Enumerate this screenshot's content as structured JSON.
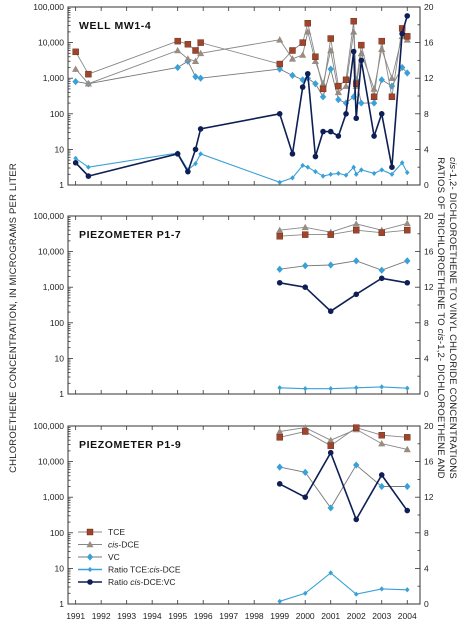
{
  "chart_data": {
    "type": "line",
    "ylabel_left": "CHLOROETHENE CONCENTRATION, IN MICROGRAMS PER LITER",
    "ylabel_right_line1": "RATIOS OF TRICHLOROETHENE TO cis-1,2- DICHLOROETHENE AND",
    "ylabel_right_line2": "cis-1,2- DICHLOROETHENE TO VINYL CHLORIDE CONCENTRATIONS",
    "left_axis": {
      "scale": "log",
      "ylim": [
        1,
        100000
      ],
      "tick_labels": [
        "1",
        "10",
        "100",
        "1,000",
        "10,000",
        "100,000"
      ]
    },
    "right_axis": {
      "scale": "linear",
      "ylim": [
        0,
        20
      ],
      "tick_labels": [
        "0",
        "4",
        "8",
        "12",
        "16",
        "20"
      ]
    },
    "x_axis": {
      "xlim": [
        1990.7,
        2004.5
      ],
      "tick_labels": [
        "1991",
        "1992",
        "1993",
        "1994",
        "1995",
        "1996",
        "1997",
        "1998",
        "1999",
        "2000",
        "2001",
        "2002",
        "2003",
        "2004"
      ]
    },
    "series_styles": [
      {
        "name": "TCE",
        "color": "#a0442a",
        "line": "#888888",
        "marker": "square",
        "axis": "left"
      },
      {
        "name": "cis-DCE",
        "color": "#9a8c80",
        "line": "#888888",
        "marker": "triangle",
        "axis": "left"
      },
      {
        "name": "VC",
        "color": "#3aa0d8",
        "line": "#777777",
        "marker": "diamond",
        "axis": "left"
      },
      {
        "name": "Ratio TCE:cis-DCE",
        "color": "#3aa0d8",
        "line": "#3aa0d8",
        "marker": "small-diamond",
        "axis": "right"
      },
      {
        "name": "Ratio cis-DCE:VC",
        "color": "#0d1f55",
        "line": "#0d1f55",
        "marker": "circle",
        "axis": "right"
      }
    ],
    "legend": {
      "placement": "lower-left of bottom panel",
      "entries": [
        {
          "prefix": "",
          "italic": "",
          "suffix": "TCE"
        },
        {
          "prefix": "",
          "italic": "cis",
          "suffix": "-DCE"
        },
        {
          "prefix": "",
          "italic": "",
          "suffix": "VC"
        },
        {
          "prefix": "Ratio TCE:",
          "italic": "cis",
          "suffix": "-DCE"
        },
        {
          "prefix": "Ratio ",
          "italic": "cis",
          "suffix": "-DCE:VC"
        }
      ]
    },
    "panels": [
      {
        "title": "WELL MW1-4",
        "series": [
          {
            "name": "TCE",
            "x": [
              1991,
              1991.5,
              1995,
              1995.4,
              1995.7,
              1995.9,
              1999,
              1999.5,
              1999.9,
              2000.1,
              2000.4,
              2000.7,
              2001.0,
              2001.3,
              2001.6,
              2001.9,
              2002.0,
              2002.2,
              2002.7,
              2003.0,
              2003.4,
              2003.8,
              2004.0
            ],
            "values": [
              5500,
              1300,
              11000,
              9000,
              6000,
              10000,
              2500,
              6000,
              10000,
              35000,
              4000,
              500,
              13000,
              600,
              900,
              40000,
              700,
              8500,
              300,
              11000,
              300,
              25000,
              15000
            ]
          },
          {
            "name": "cis-DCE",
            "x": [
              1991,
              1991.5,
              1995,
              1995.4,
              1995.7,
              1995.9,
              1999,
              1999.5,
              1999.9,
              2000.1,
              2000.4,
              2000.7,
              2001.0,
              2001.3,
              2001.6,
              2001.9,
              2002.0,
              2002.2,
              2002.7,
              2003.0,
              2003.4,
              2003.8,
              2004.0
            ],
            "values": [
              1800,
              700,
              6000,
              3500,
              3000,
              5000,
              12000,
              3500,
              4500,
              20000,
              3000,
              700,
              6000,
              400,
              600,
              20000,
              600,
              5000,
              500,
              6500,
              1000,
              15000,
              12000
            ]
          },
          {
            "name": "VC",
            "x": [
              1991,
              1991.5,
              1995,
              1995.4,
              1995.7,
              1995.9,
              1999,
              1999.5,
              1999.9,
              2000.1,
              2000.4,
              2000.7,
              2001.0,
              2001.3,
              2001.6,
              2001.9,
              2002.0,
              2002.2,
              2002.7,
              2003.0,
              2003.4,
              2003.8,
              2004.0
            ],
            "values": [
              800,
              700,
              2000,
              3000,
              1100,
              1000,
              1800,
              1200,
              900,
              1000,
              700,
              300,
              1800,
              250,
              200,
              300,
              900,
              200,
              200,
              900,
              600,
              2000,
              1400
            ]
          },
          {
            "name": "Ratio TCE:cis-DCE",
            "x": [
              1991,
              1991.5,
              1995,
              1995.4,
              1995.7,
              1995.9,
              1999,
              1999.5,
              1999.9,
              2000.1,
              2000.4,
              2000.7,
              2001.0,
              2001.3,
              2001.6,
              2001.9,
              2002.0,
              2002.2,
              2002.7,
              2003.0,
              2003.4,
              2003.8,
              2004.0
            ],
            "values": [
              3.0,
              2.0,
              3.6,
              1.7,
              2.4,
              3.5,
              0.3,
              0.8,
              2.2,
              2.0,
              1.5,
              1.0,
              1.2,
              1.3,
              1.1,
              2.0,
              1.2,
              1.7,
              1.3,
              1.7,
              1.2,
              2.5,
              1.4
            ]
          },
          {
            "name": "Ratio cis-DCE:VC",
            "x": [
              1991,
              1991.5,
              1995,
              1995.4,
              1995.7,
              1995.9,
              1999,
              1999.5,
              1999.9,
              2000.1,
              2000.4,
              2000.7,
              2001.0,
              2001.3,
              2001.6,
              2001.9,
              2002.0,
              2002.2,
              2002.7,
              2003.0,
              2003.4,
              2003.8,
              2004.0
            ],
            "values": [
              2.5,
              1.0,
              3.5,
              1.5,
              4.0,
              6.3,
              8.0,
              3.5,
              11.0,
              12.5,
              3.2,
              6.0,
              6.0,
              5.5,
              8.0,
              15.0,
              7.5,
              14.0,
              5.5,
              8.0,
              2.0,
              17.0,
              19.0
            ]
          }
        ]
      },
      {
        "title": "PIEZOMETER P1-7",
        "series": [
          {
            "name": "TCE",
            "x": [
              1999,
              2000,
              2001,
              2002,
              2003,
              2004
            ],
            "values": [
              27000,
              30000,
              30000,
              40000,
              34000,
              40000
            ]
          },
          {
            "name": "cis-DCE",
            "x": [
              1999,
              2000,
              2001,
              2002,
              2003,
              2004
            ],
            "values": [
              40000,
              48000,
              35000,
              60000,
              40000,
              62000
            ]
          },
          {
            "name": "VC",
            "x": [
              1999,
              2000,
              2001,
              2002,
              2003,
              2004
            ],
            "values": [
              3200,
              4000,
              4200,
              5500,
              3000,
              5500
            ]
          },
          {
            "name": "Ratio TCE:cis-DCE",
            "x": [
              1999,
              2000,
              2001,
              2002,
              2003,
              2004
            ],
            "values": [
              0.7,
              0.6,
              0.6,
              0.7,
              0.8,
              0.65
            ]
          },
          {
            "name": "Ratio cis-DCE:VC",
            "x": [
              1999,
              2000,
              2001,
              2002,
              2003,
              2004
            ],
            "values": [
              12.5,
              12.0,
              9.3,
              11.2,
              13.0,
              12.5
            ]
          }
        ]
      },
      {
        "title": "PIEZOMETER P1-9",
        "series": [
          {
            "name": "TCE",
            "x": [
              1999,
              2000,
              2001,
              2002,
              2003,
              2004
            ],
            "values": [
              48000,
              70000,
              28000,
              90000,
              55000,
              48000
            ]
          },
          {
            "name": "cis-DCE",
            "x": [
              1999,
              2000,
              2001,
              2002,
              2003,
              2004
            ],
            "values": [
              70000,
              90000,
              40000,
              80000,
              32000,
              22000
            ]
          },
          {
            "name": "VC",
            "x": [
              1999,
              2000,
              2001,
              2002,
              2003,
              2004
            ],
            "values": [
              7000,
              5000,
              500,
              8000,
              2000,
              2000
            ]
          },
          {
            "name": "Ratio TCE:cis-DCE",
            "x": [
              1999,
              2000,
              2001,
              2002,
              2003,
              2004
            ],
            "values": [
              0.3,
              1.2,
              3.5,
              1.1,
              1.7,
              1.6
            ]
          },
          {
            "name": "Ratio cis-DCE:VC",
            "x": [
              1999,
              2000,
              2001,
              2002,
              2003,
              2004
            ],
            "values": [
              13.5,
              12.0,
              17.0,
              9.5,
              14.5,
              10.5
            ]
          }
        ]
      }
    ]
  }
}
